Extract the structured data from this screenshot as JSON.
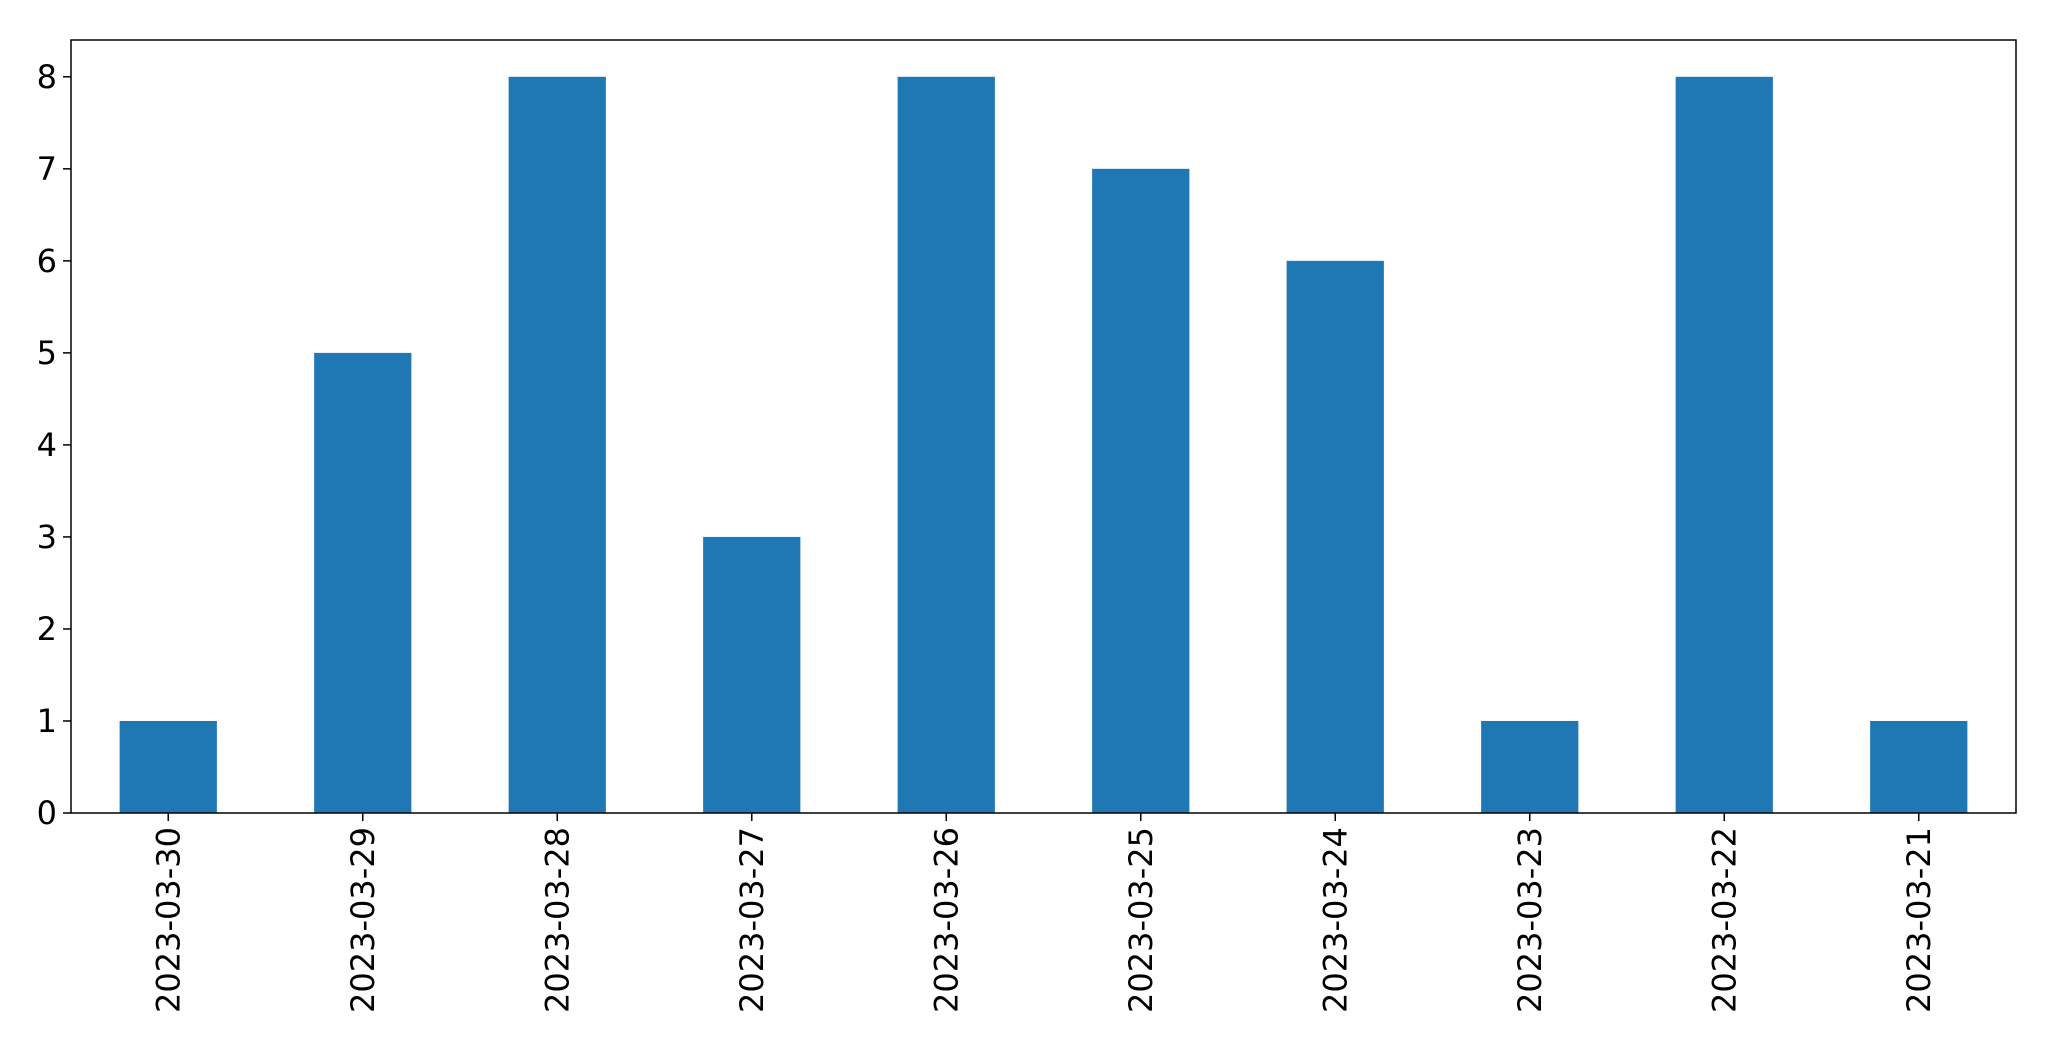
{
  "chart_data": {
    "type": "bar",
    "title": "",
    "xlabel": "",
    "ylabel": "",
    "categories": [
      "2023-03-30",
      "2023-03-29",
      "2023-03-28",
      "2023-03-27",
      "2023-03-26",
      "2023-03-25",
      "2023-03-24",
      "2023-03-23",
      "2023-03-22",
      "2023-03-21"
    ],
    "values": [
      1,
      5,
      8,
      3,
      8,
      7,
      6,
      1,
      8,
      1
    ],
    "ylim": [
      0,
      8.4
    ],
    "yticks": [
      0,
      1,
      2,
      3,
      4,
      5,
      6,
      7,
      8
    ],
    "bar_color": "#1f77b4",
    "grid": false,
    "legend": "none"
  }
}
